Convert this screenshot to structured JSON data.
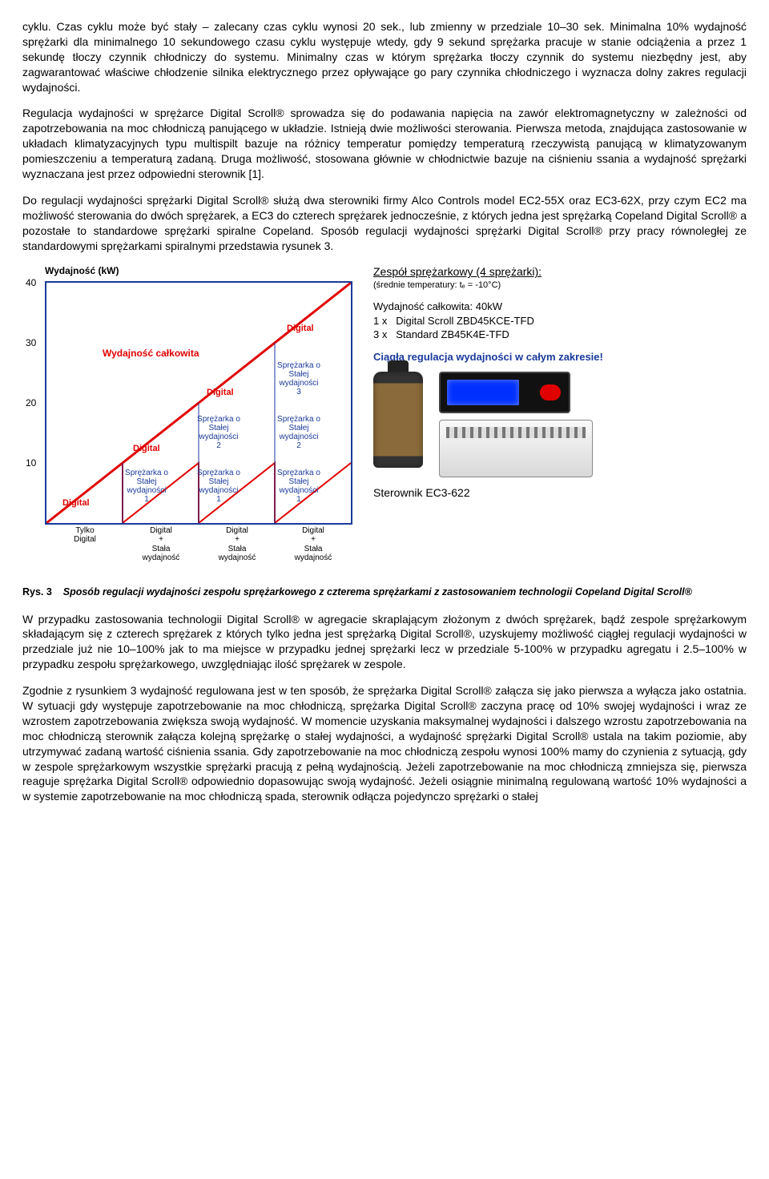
{
  "paragraphs": {
    "p1": "cyklu. Czas cyklu może być stały – zalecany czas cyklu wynosi 20 sek., lub zmienny w przedziale 10–30 sek. Minimalna 10% wydajność sprężarki dla minimalnego 10 sekundowego czasu cyklu występuje wtedy, gdy 9 sekund sprężarka pracuje w stanie odciążenia a przez 1 sekundę tłoczy czynnik chłodniczy do systemu. Minimalny czas w którym sprężarka tłoczy czynnik do systemu niezbędny jest, aby zagwarantować właściwe chłodzenie silnika elektrycznego przez opływające go pary czynnika chłodniczego i wyznacza dolny zakres regulacji wydajności.",
    "p2": "Regulacja wydajności w sprężarce Digital Scroll® sprowadza się do podawania napięcia na zawór elektromagnetyczny w zależności od zapotrzebowania na moc chłodniczą panującego w układzie. Istnieją dwie możliwości sterowania. Pierwsza metoda, znajdująca zastosowanie w układach klimatyzacyjnych typu multispilt  bazuje na różnicy temperatur pomiędzy temperaturą rzeczywistą panującą w klimatyzowanym pomieszczeniu a temperaturą zadaną. Druga możliwość, stosowana głównie w chłodnictwie bazuje na ciśnieniu ssania a wydajność sprężarki wyznaczana jest przez odpowiedni sterownik [1].",
    "p3": "Do regulacji wydajności sprężarki Digital Scroll® służą dwa sterowniki firmy Alco Controls model EC2-55X oraz EC3-62X, przy czym EC2 ma możliwość sterowania do dwóch sprężarek, a EC3 do czterech sprężarek jednocześnie, z których jedna jest sprężarką Copeland Digital Scroll® a pozostałe to standardowe sprężarki spiralne Copeland. Sposób regulacji wydajności sprężarki Digital Scroll® przy pracy równoległej ze standardowymi sprężarkami spiralnymi przedstawia rysunek 3.",
    "p4": "W przypadku zastosowania technologii Digital Scroll® w agregacie skraplającym złożonym z dwóch sprężarek, bądź zespole sprężarkowym składającym się z czterech sprężarek z których tylko jedna jest sprężarką Digital Scroll®, uzyskujemy możliwość ciągłej regulacji wydajności w przedziale już nie 10–100% jak to ma miejsce w przypadku jednej sprężarki lecz w przedziale 5-100% w przypadku agregatu i 2.5–100% w przypadku zespołu sprężarkowego, uwzględniając ilość sprężarek w zespole.",
    "p5": "Zgodnie z rysunkiem 3 wydajność regulowana jest w ten sposób, że sprężarka Digital Scroll® załącza się jako pierwsza a wyłącza jako ostatnia. W sytuacji gdy występuje zapotrzebowanie na moc chłodniczą, sprężarka Digital Scroll® zaczyna pracę od 10% swojej wydajności i wraz ze wzrostem zapotrzebowania zwiększa swoją wydajność. W momencie uzyskania maksymalnej wydajności i dalszego wzrostu zapotrzebowania na moc chłodniczą sterownik załącza kolejną sprężarkę o stałej wydajności, a wydajność sprężarki Digital Scroll® ustala na takim poziomie, aby utrzymywać zadaną wartość ciśnienia ssania. Gdy zapotrzebowanie na moc chłodniczą zespołu wynosi 100% mamy do czynienia z sytuacją, gdy w zespole sprężarkowym wszystkie sprężarki pracują z pełną wydajnością. Jeżeli zapotrzebowanie na moc chłodniczą zmniejsza się, pierwsza reaguje sprężarka Digital Scroll® odpowiednio dopasowując swoją wydajność. Jeżeli osiągnie minimalną regulowaną wartość 10% wydajności a w systemie zapotrzebowanie na moc chłodniczą spada, sterownik odłącza pojedynczo sprężarki o stałej"
  },
  "figure": {
    "chart": {
      "axis_title": "Wydajność (kW)",
      "yticks": [
        {
          "label": "40",
          "top_pct": 0
        },
        {
          "label": "30",
          "top_pct": 25
        },
        {
          "label": "20",
          "top_pct": 50
        },
        {
          "label": "10",
          "top_pct": 75
        }
      ],
      "wyd_calk": "Wydajność całkowita",
      "digital": "Digital",
      "block": "Sprężarka o\nStałej\nwydajności",
      "xcats": [
        "Tylko\nDigital",
        "Digital\n+\nStała\nwydajność",
        "Digital\n+\nStała\nwydajność",
        "Digital\n+\nStała\nwydajność"
      ],
      "blocks_num": {
        "n1": "1",
        "n2": "2",
        "n3": "3"
      },
      "colors": {
        "border": "#1a3a9c",
        "line": "#e00000",
        "text_blue": "#1a3a9c",
        "text_red": "#e00000"
      }
    },
    "right": {
      "header": "Zespół sprężarkowy (4 sprężarki):",
      "sub": "(średnie temperatury: tₑ = -10°C)",
      "tot": "Wydajność całkowita: 40kW",
      "line1_a": "1 x",
      "line1_b": "Digital Scroll  ZBD45KCE-TFD",
      "line2_a": "3 x",
      "line2_b": "Standard       ZB45K4E-TFD",
      "blue": "Ciągła regulacja wydajności w całym zakresie!",
      "ctrl": "Sterownik EC3-622"
    },
    "caption_rys": "Rys. 3",
    "caption": "Sposób regulacji wydajności zespołu sprężarkowego z czterema sprężarkami z zastosowaniem technologii Copeland Digital Scroll®"
  }
}
